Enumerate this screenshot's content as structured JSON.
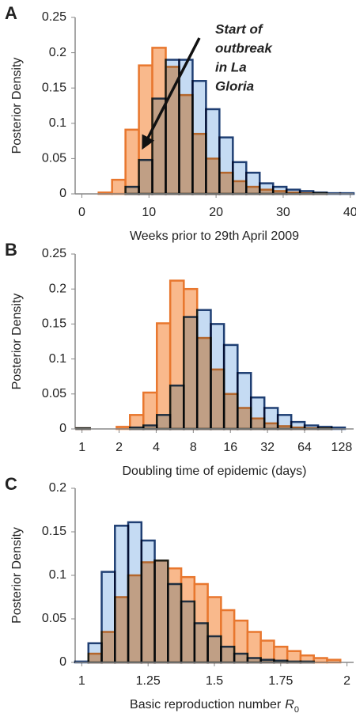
{
  "chart_data": [
    {
      "type": "histogram",
      "panel_label": "A",
      "y_label": "Posterior Density",
      "x_label": {
        "text": "Weeks prior to 29th April 2009"
      },
      "annotation": [
        "Start of",
        "outbreak",
        "in La",
        "Gloria"
      ],
      "bins": [
        2.5,
        4.5,
        6.5,
        8.5,
        10.5,
        12.5,
        14.5,
        16.5,
        18.5,
        20.5,
        22.5,
        24.5,
        26.5,
        28.5,
        30.5,
        32.5,
        34.5,
        36.5,
        38.5,
        40.5
      ],
      "series": [
        {
          "color": "#f9b98c",
          "edge_color": "#e8772e",
          "values": [
            0.002,
            0.02,
            0.091,
            0.182,
            0.207,
            0.18,
            0.14,
            0.085,
            0.05,
            0.03,
            0.018,
            0.01,
            0.006,
            0.004,
            0.002,
            0.001,
            0.001,
            0,
            0
          ]
        },
        {
          "color": "#c5dbf3",
          "edge_color": "#1f3f73",
          "values": [
            0,
            0,
            0.01,
            0.048,
            0.135,
            0.19,
            0.19,
            0.16,
            0.12,
            0.08,
            0.045,
            0.03,
            0.015,
            0.01,
            0.006,
            0.004,
            0.002,
            0.001,
            0.001
          ]
        }
      ],
      "xlim": [
        -1,
        40.5
      ],
      "xticks": [
        0,
        10,
        20,
        30,
        40
      ],
      "ylim": [
        0,
        0.25
      ],
      "yticks": [
        0,
        0.05,
        0.1,
        0.15,
        0.2,
        0.25
      ]
    },
    {
      "type": "histogram",
      "panel_label": "B",
      "y_label": "Posterior Density",
      "x_label": {
        "text": "Doubling time of epidemic (days)"
      },
      "x_log": true,
      "bins": [
        0.9,
        1.16,
        1.49,
        1.91,
        2.45,
        3.15,
        4.05,
        5.2,
        6.7,
        8.6,
        11.1,
        14.2,
        18.3,
        23.5,
        30.2,
        38.8,
        49.9,
        64.1,
        82.4,
        106,
        136
      ],
      "series": [
        {
          "color": "#f9b98c",
          "edge_color": "#e8772e",
          "values": [
            0.001,
            0,
            0,
            0.003,
            0.02,
            0.052,
            0.151,
            0.212,
            0.2,
            0.13,
            0.085,
            0.05,
            0.03,
            0.015,
            0.008,
            0.004,
            0.002,
            0.001,
            0.001,
            0
          ]
        },
        {
          "color": "#c5dbf3",
          "edge_color": "#1f3f73",
          "values": [
            0.001,
            0,
            0,
            0,
            0.002,
            0.005,
            0.02,
            0.062,
            0.16,
            0.17,
            0.15,
            0.12,
            0.08,
            0.045,
            0.03,
            0.02,
            0.01,
            0.005,
            0.003,
            0.002
          ]
        }
      ],
      "xlim": [
        0.88,
        160
      ],
      "xticks": [
        1,
        2,
        4,
        8,
        16,
        32,
        64,
        128
      ],
      "ylim": [
        0,
        0.25
      ],
      "yticks": [
        0,
        0.05,
        0.1,
        0.15,
        0.2,
        0.25
      ]
    },
    {
      "type": "histogram",
      "panel_label": "C",
      "y_label": "Posterior Density",
      "x_label": {
        "text": "Basic reproduction number",
        "symbol": "R",
        "subscript": "0"
      },
      "bins": [
        0.975,
        1.025,
        1.075,
        1.125,
        1.175,
        1.225,
        1.275,
        1.325,
        1.375,
        1.425,
        1.475,
        1.525,
        1.575,
        1.625,
        1.675,
        1.725,
        1.775,
        1.825,
        1.875,
        1.925,
        1.975
      ],
      "series": [
        {
          "color": "#f9b98c",
          "edge_color": "#e8772e",
          "values": [
            0,
            0.01,
            0.035,
            0.075,
            0.1,
            0.115,
            0.117,
            0.108,
            0.098,
            0.09,
            0.075,
            0.06,
            0.048,
            0.035,
            0.025,
            0.018,
            0.013,
            0.008,
            0.005,
            0.003
          ]
        },
        {
          "color": "#c5dbf3",
          "edge_color": "#1f3f73",
          "values": [
            0.001,
            0.022,
            0.104,
            0.157,
            0.161,
            0.14,
            0.117,
            0.09,
            0.07,
            0.045,
            0.03,
            0.018,
            0.01,
            0.005,
            0.003,
            0.002,
            0.001,
            0.001,
            0,
            0
          ]
        }
      ],
      "xlim": [
        0.975,
        2.025
      ],
      "xticks": [
        1,
        1.25,
        1.5,
        1.75,
        2
      ],
      "ylim": [
        0,
        0.2
      ],
      "yticks": [
        0,
        0.05,
        0.1,
        0.15,
        0.2
      ]
    }
  ]
}
